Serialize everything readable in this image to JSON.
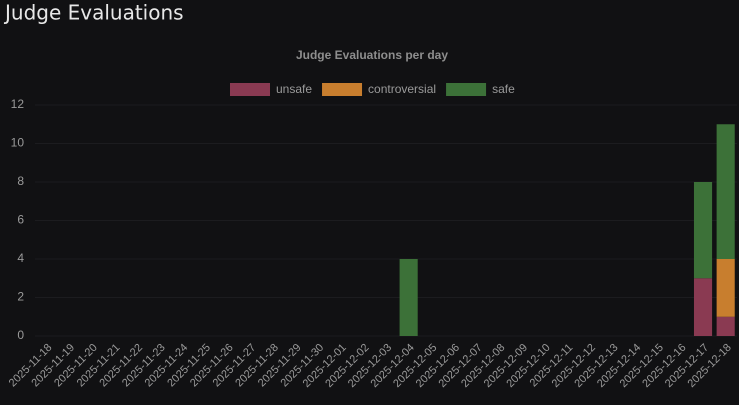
{
  "page_title": "Judge Evaluations",
  "chart_data": {
    "type": "stacked_bar",
    "title": "Judge Evaluations per day",
    "categories": [
      "2025-11-18",
      "2025-11-19",
      "2025-11-20",
      "2025-11-21",
      "2025-11-22",
      "2025-11-23",
      "2025-11-24",
      "2025-11-25",
      "2025-11-26",
      "2025-11-27",
      "2025-11-28",
      "2025-11-29",
      "2025-11-30",
      "2025-12-01",
      "2025-12-02",
      "2025-12-03",
      "2025-12-04",
      "2025-12-05",
      "2025-12-06",
      "2025-12-07",
      "2025-12-08",
      "2025-12-09",
      "2025-12-10",
      "2025-12-11",
      "2025-12-12",
      "2025-12-13",
      "2025-12-14",
      "2025-12-15",
      "2025-12-16",
      "2025-12-17",
      "2025-12-18"
    ],
    "series": [
      {
        "name": "unsafe",
        "color": "#8a3a52",
        "values": [
          0,
          0,
          0,
          0,
          0,
          0,
          0,
          0,
          0,
          0,
          0,
          0,
          0,
          0,
          0,
          0,
          0,
          0,
          0,
          0,
          0,
          0,
          0,
          0,
          0,
          0,
          0,
          0,
          0,
          3,
          1
        ]
      },
      {
        "name": "controversial",
        "color": "#c87e2e",
        "values": [
          0,
          0,
          0,
          0,
          0,
          0,
          0,
          0,
          0,
          0,
          0,
          0,
          0,
          0,
          0,
          0,
          0,
          0,
          0,
          0,
          0,
          0,
          0,
          0,
          0,
          0,
          0,
          0,
          0,
          0,
          3
        ]
      },
      {
        "name": "safe",
        "color": "#3c7138",
        "values": [
          0,
          0,
          0,
          0,
          0,
          0,
          0,
          0,
          0,
          0,
          0,
          0,
          0,
          0,
          0,
          0,
          4,
          0,
          0,
          0,
          0,
          0,
          0,
          0,
          0,
          0,
          0,
          0,
          0,
          5,
          7
        ]
      }
    ],
    "ylim": [
      0,
      12
    ],
    "yticks": [
      0,
      2,
      4,
      6,
      8,
      10,
      12
    ],
    "grid": true,
    "legend": "top"
  }
}
